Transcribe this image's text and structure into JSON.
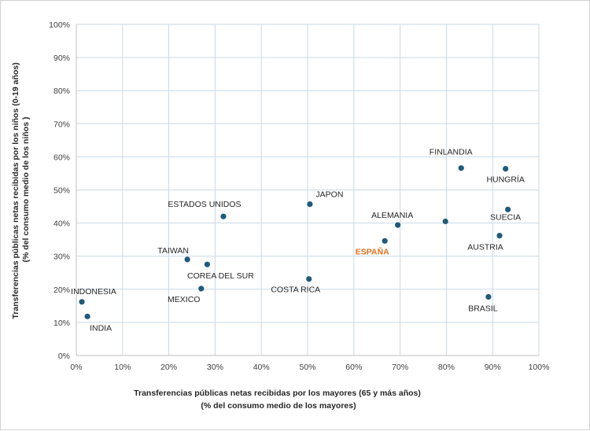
{
  "chart_data": {
    "type": "scatter",
    "xlabel": [
      "Transferencias públicas netas recibidas por los mayores (65 y más años)",
      "(% del consumo medio de los mayores)"
    ],
    "ylabel": [
      "Transferencias públicas netas recibidas por los niños (0-19 años)",
      "(% del consumo medio de los niños )"
    ],
    "xlim": [
      0,
      100
    ],
    "ylim": [
      0,
      100
    ],
    "x_ticks": [
      "0%",
      "10%",
      "20%",
      "30%",
      "40%",
      "50%",
      "60%",
      "70%",
      "80%",
      "90%",
      "100%"
    ],
    "y_ticks": [
      "0%",
      "10%",
      "20%",
      "30%",
      "40%",
      "50%",
      "60%",
      "70%",
      "80%",
      "90%",
      "100%"
    ],
    "grid": true,
    "marker_color": "#1f5a7a",
    "highlight_color": "#e2711d",
    "points": [
      {
        "label": "INDONESIA",
        "x": 1.2,
        "y": 16.2
      },
      {
        "label": "INDIA",
        "x": 2.4,
        "y": 11.8
      },
      {
        "label": "TAIWAN",
        "x": 24.0,
        "y": 29.0
      },
      {
        "label": "COREA DEL SUR",
        "x": 28.3,
        "y": 27.5
      },
      {
        "label": "MEXICO",
        "x": 27.0,
        "y": 20.2
      },
      {
        "label": "ESTADOS UNIDOS",
        "x": 31.8,
        "y": 42.0
      },
      {
        "label": "JAPON",
        "x": 50.5,
        "y": 45.7
      },
      {
        "label": "COSTA RICA",
        "x": 50.3,
        "y": 23.1
      },
      {
        "label": "ESPAÑA",
        "x": 66.7,
        "y": 34.6,
        "highlight": true
      },
      {
        "label": "ALEMANIA",
        "x": 69.5,
        "y": 39.4
      },
      {
        "label": "",
        "x": 79.8,
        "y": 40.5
      },
      {
        "label": "FINLANDIA",
        "x": 83.2,
        "y": 56.6
      },
      {
        "label": "HUNGRÍA",
        "x": 92.8,
        "y": 56.4
      },
      {
        "label": "SUECIA",
        "x": 93.3,
        "y": 44.1
      },
      {
        "label": "AUSTRIA",
        "x": 91.5,
        "y": 36.2
      },
      {
        "label": "BRASIL",
        "x": 89.1,
        "y": 17.7
      }
    ]
  }
}
